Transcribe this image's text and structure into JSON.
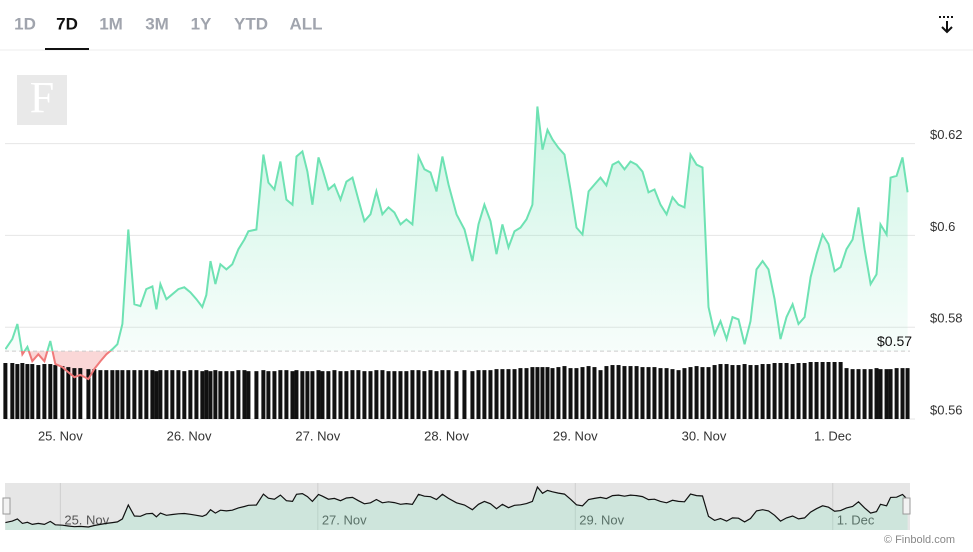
{
  "tabs": [
    "1D",
    "7D",
    "1M",
    "3M",
    "1Y",
    "YTD",
    "ALL"
  ],
  "active_tab": 1,
  "watermark": "F",
  "credit": "© Finbold.com",
  "chart_data": {
    "type": "line",
    "color": "#6ee2b3",
    "down_color": "#f07a7a",
    "volume_color": "#111111",
    "xlim": [
      -0.43,
      6.6
    ],
    "ylim": [
      0.56,
      0.6404
    ],
    "xticks": [
      {
        "value": 0,
        "label": "25. Nov"
      },
      {
        "value": 1,
        "label": "26. Nov"
      },
      {
        "value": 2,
        "label": "27. Nov"
      },
      {
        "value": 3,
        "label": "28. Nov"
      },
      {
        "value": 4,
        "label": "29. Nov"
      },
      {
        "value": 5,
        "label": "30. Nov"
      },
      {
        "value": 6,
        "label": "1. Dec"
      }
    ],
    "yticks": [
      {
        "value": 0.56,
        "label": "$0.56"
      },
      {
        "value": 0.58,
        "label": "$0.58"
      },
      {
        "value": 0.6,
        "label": "$0.6"
      },
      {
        "value": 0.62,
        "label": "$0.62"
      }
    ],
    "grid": true,
    "reference": {
      "value": 0.5748,
      "label": "$0.57"
    },
    "x": [
      -0.427,
      -0.373,
      -0.334,
      -0.295,
      -0.256,
      -0.218,
      -0.171,
      -0.124,
      -0.078,
      -0.039,
      0.016,
      0.062,
      0.109,
      0.155,
      0.218,
      0.264,
      0.311,
      0.357,
      0.404,
      0.443,
      0.482,
      0.528,
      0.575,
      0.622,
      0.668,
      0.715,
      0.746,
      0.777,
      0.824,
      0.87,
      0.917,
      0.963,
      1.01,
      1.057,
      1.103,
      1.134,
      1.166,
      1.204,
      1.243,
      1.29,
      1.336,
      1.383,
      1.43,
      1.461,
      1.523,
      1.577,
      1.616,
      1.663,
      1.709,
      1.756,
      1.803,
      1.834,
      1.88,
      1.919,
      1.958,
      2.005,
      2.036,
      2.082,
      2.129,
      2.176,
      2.222,
      2.269,
      2.315,
      2.362,
      2.409,
      2.455,
      2.502,
      2.549,
      2.595,
      2.642,
      2.688,
      2.735,
      2.782,
      2.828,
      2.875,
      2.922,
      2.968,
      3.015,
      3.077,
      3.139,
      3.201,
      3.248,
      3.294,
      3.341,
      3.388,
      3.434,
      3.481,
      3.528,
      3.574,
      3.621,
      3.667,
      3.706,
      3.745,
      3.784,
      3.823,
      3.869,
      3.916,
      3.963,
      4.009,
      4.056,
      4.103,
      4.149,
      4.196,
      4.242,
      4.289,
      4.336,
      4.382,
      4.429,
      4.476,
      4.522,
      4.569,
      4.615,
      4.662,
      4.709,
      4.755,
      4.802,
      4.848,
      4.895,
      4.942,
      4.988,
      5.035,
      5.082,
      5.128,
      5.175,
      5.221,
      5.268,
      5.315,
      5.361,
      5.408,
      5.455,
      5.501,
      5.548,
      5.594,
      5.641,
      5.688,
      5.734,
      5.781,
      5.828,
      5.874,
      5.921,
      5.967,
      6.014,
      6.061,
      6.107,
      6.154,
      6.2,
      6.247,
      6.294,
      6.34,
      6.371,
      6.418,
      6.449,
      6.496,
      6.542,
      6.581
    ],
    "values": [
      0.5752,
      0.5774,
      0.5807,
      0.5741,
      0.5757,
      0.5726,
      0.5741,
      0.5726,
      0.577,
      0.572,
      0.5713,
      0.5702,
      0.5691,
      0.5696,
      0.5687,
      0.5709,
      0.5726,
      0.5741,
      0.5752,
      0.5763,
      0.5807,
      0.6013,
      0.585,
      0.5846,
      0.5883,
      0.5889,
      0.5839,
      0.5894,
      0.5861,
      0.5872,
      0.5883,
      0.5887,
      0.5876,
      0.5861,
      0.5844,
      0.587,
      0.5944,
      0.5894,
      0.5937,
      0.5926,
      0.5937,
      0.597,
      0.5991,
      0.6009,
      0.6013,
      0.6176,
      0.6115,
      0.61,
      0.6161,
      0.6078,
      0.6067,
      0.6172,
      0.6183,
      0.6139,
      0.6067,
      0.617,
      0.6144,
      0.61,
      0.6111,
      0.6078,
      0.6117,
      0.6126,
      0.6078,
      0.6031,
      0.6046,
      0.6096,
      0.6046,
      0.6061,
      0.605,
      0.6024,
      0.6035,
      0.6024,
      0.6172,
      0.6144,
      0.6137,
      0.6096,
      0.6172,
      0.6111,
      0.6046,
      0.6013,
      0.5944,
      0.6024,
      0.6067,
      0.6031,
      0.5959,
      0.6024,
      0.5974,
      0.6009,
      0.6017,
      0.6035,
      0.6067,
      0.6281,
      0.6187,
      0.623,
      0.6209,
      0.6191,
      0.6176,
      0.61,
      0.6017,
      0.6002,
      0.6096,
      0.6111,
      0.6126,
      0.6109,
      0.6154,
      0.6161,
      0.6144,
      0.6161,
      0.6154,
      0.6139,
      0.6094,
      0.61,
      0.6067,
      0.6046,
      0.6083,
      0.6067,
      0.6061,
      0.6176,
      0.6154,
      0.6148,
      0.5844,
      0.5785,
      0.5813,
      0.5774,
      0.5822,
      0.5817,
      0.5763,
      0.5813,
      0.5926,
      0.5944,
      0.5926,
      0.5861,
      0.5774,
      0.5822,
      0.585,
      0.5807,
      0.5822,
      0.5909,
      0.5959,
      0.6002,
      0.5981,
      0.5922,
      0.5931,
      0.597,
      0.5991,
      0.6061,
      0.597,
      0.5894,
      0.5915,
      0.6024,
      0.6002,
      0.6126,
      0.613,
      0.617,
      0.6094
    ],
    "volume": [
      55,
      55,
      54,
      55,
      54,
      54,
      53,
      54,
      54,
      53,
      52,
      51,
      50,
      50,
      49,
      49,
      48,
      48,
      48,
      48,
      48,
      48,
      48,
      48,
      48,
      48,
      47,
      48,
      48,
      48,
      48,
      47,
      48,
      48,
      47,
      48,
      47,
      48,
      47,
      47,
      47,
      48,
      48,
      47,
      47,
      48,
      47,
      47,
      48,
      48,
      47,
      48,
      47,
      47,
      47,
      48,
      47,
      47,
      48,
      47,
      47,
      48,
      48,
      47,
      47,
      48,
      48,
      47,
      47,
      47,
      47,
      48,
      48,
      47,
      48,
      47,
      48,
      48,
      47,
      48,
      47,
      48,
      48,
      48,
      49,
      49,
      49,
      49,
      50,
      50,
      51,
      51,
      51,
      51,
      50,
      51,
      52,
      50,
      50,
      51,
      52,
      51,
      48,
      52,
      53,
      53,
      52,
      52,
      52,
      51,
      51,
      51,
      50,
      50,
      49,
      48,
      50,
      51,
      52,
      51,
      51,
      53,
      54,
      54,
      53,
      53,
      54,
      53,
      53,
      54,
      54,
      55,
      55,
      55,
      54,
      55,
      55,
      56,
      56,
      56,
      56,
      56,
      56,
      50,
      49,
      49,
      49,
      49,
      50,
      49,
      49,
      49,
      50,
      50,
      50
    ]
  }
}
